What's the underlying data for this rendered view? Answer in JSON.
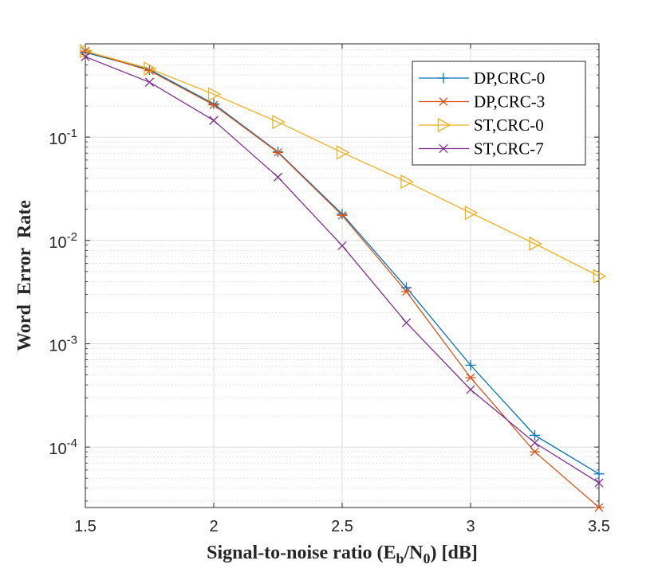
{
  "chart_data": {
    "type": "line",
    "title": "",
    "xlabel": "Signal-to-noise ratio (E_b/N_0) [dB]",
    "xlabel_parts": {
      "prefix": "Signal-to-noise ratio (E",
      "sub1": "b",
      "mid": "/N",
      "sub2": "0",
      "suffix": ") [dB]"
    },
    "ylabel": "Word  Error  Rate",
    "xlim": [
      1.5,
      3.5
    ],
    "ylim": [
      2.6e-05,
      0.8
    ],
    "yscale": "log",
    "grid": true,
    "minor_grid": true,
    "legend_position": "top-right",
    "x_ticks": [
      1.5,
      2,
      2.5,
      3,
      3.5
    ],
    "x_tick_labels": [
      "1.5",
      "2",
      "2.5",
      "3",
      "3.5"
    ],
    "y_ticks": [
      {
        "value": 0.1,
        "base": "10",
        "exp": "-1"
      },
      {
        "value": 0.01,
        "base": "10",
        "exp": "-2"
      },
      {
        "value": 0.001,
        "base": "10",
        "exp": "-3"
      },
      {
        "value": 0.0001,
        "base": "10",
        "exp": "-4"
      }
    ],
    "x": [
      1.5,
      1.75,
      2.0,
      2.25,
      2.5,
      2.75,
      3.0,
      3.25,
      3.5
    ],
    "series": [
      {
        "name": "DP,CRC-0",
        "color": "#0072BD",
        "marker": "plus",
        "values": [
          0.66,
          0.45,
          0.21,
          0.072,
          0.018,
          0.0035,
          0.00062,
          0.00013,
          5.5e-05
        ]
      },
      {
        "name": "DP,CRC-3",
        "color": "#D95319",
        "marker": "asterisk",
        "values": [
          0.68,
          0.44,
          0.205,
          0.071,
          0.0175,
          0.0032,
          0.00047,
          9e-05,
          2.6e-05
        ]
      },
      {
        "name": "ST,CRC-0",
        "color": "#EDB120",
        "marker": "triangle-right",
        "values": [
          0.68,
          0.46,
          0.26,
          0.14,
          0.071,
          0.037,
          0.0185,
          0.0093,
          0.0045
        ]
      },
      {
        "name": "ST,CRC-7",
        "color": "#7E2F8E",
        "marker": "x",
        "values": [
          0.6,
          0.34,
          0.145,
          0.041,
          0.0089,
          0.0016,
          0.00036,
          0.00011,
          4.5e-05
        ]
      }
    ]
  }
}
